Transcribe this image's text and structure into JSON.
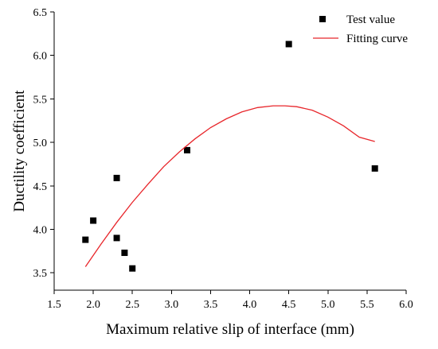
{
  "chart_data": {
    "type": "scatter",
    "xlabel": "Maximum relative slip of interface (mm)",
    "ylabel": "Ductility coefficient",
    "xlim": [
      1.5,
      6.0
    ],
    "ylim": [
      3.3,
      6.5
    ],
    "x_ticks": [
      "1.5",
      "2.0",
      "2.5",
      "3.0",
      "3.5",
      "4.0",
      "4.5",
      "5.0",
      "5.5",
      "6.0"
    ],
    "y_ticks": [
      "3.5",
      "4.0",
      "4.5",
      "5.0",
      "5.5",
      "6.0",
      "6.5"
    ],
    "grid": false,
    "legend_position": "top-right",
    "series": [
      {
        "name": "Test value",
        "kind": "scatter",
        "marker": "square",
        "color": "#000000",
        "x": [
          1.9,
          2.0,
          2.3,
          2.3,
          2.4,
          2.5,
          3.2,
          4.5,
          5.6
        ],
        "y": [
          3.88,
          4.1,
          4.59,
          3.9,
          3.73,
          3.55,
          4.91,
          6.13,
          4.7
        ]
      },
      {
        "name": "Fitting curve",
        "kind": "line",
        "color": "#e8262b",
        "x": [
          1.9,
          2.1,
          2.3,
          2.5,
          2.7,
          2.9,
          3.1,
          3.3,
          3.5,
          3.7,
          3.9,
          4.1,
          4.3,
          4.45,
          4.6,
          4.8,
          5.0,
          5.2,
          5.4,
          5.6
        ],
        "y": [
          3.57,
          3.83,
          4.08,
          4.31,
          4.52,
          4.72,
          4.89,
          5.04,
          5.17,
          5.27,
          5.35,
          5.4,
          5.42,
          5.42,
          5.41,
          5.37,
          5.29,
          5.19,
          5.06,
          5.01
        ]
      }
    ]
  }
}
